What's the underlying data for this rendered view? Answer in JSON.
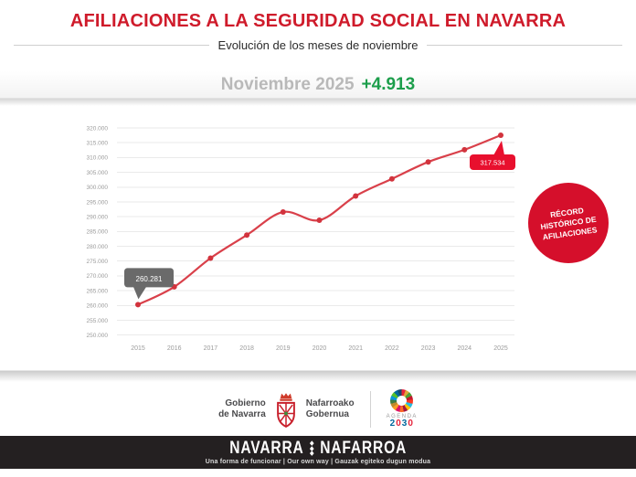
{
  "page": {
    "title": "AFILIACIONES A LA SEGURIDAD SOCIAL EN NAVARRA",
    "subtitle": "Evolución de los meses de noviembre"
  },
  "highlight": {
    "label": "Noviembre 2025",
    "delta": "+4.913"
  },
  "colors": {
    "title_red": "#cf1b2b",
    "line_red": "#d9404a",
    "marker_red": "#d2333d",
    "callout_red": "#e8102e",
    "badge_red": "#d50f2b",
    "callout_gray": "#6a6a6a",
    "positive_green": "#1c9e4b",
    "muted_gray": "#b9b9b9",
    "axis_gray": "#9b9b9b",
    "bar_black": "#242021"
  },
  "chart_data": {
    "type": "line",
    "title": "",
    "xlabel": "",
    "ylabel": "",
    "categories": [
      "2015",
      "2016",
      "2017",
      "2018",
      "2019",
      "2020",
      "2021",
      "2022",
      "2023",
      "2024",
      "2025"
    ],
    "values": [
      260281,
      266300,
      276000,
      283800,
      291600,
      288800,
      297000,
      302800,
      308500,
      312621,
      317534
    ],
    "ylim": [
      250000,
      320000
    ],
    "ytick_step": 5000,
    "ytick_labels": [
      "250.000",
      "255.000",
      "260.000",
      "265.000",
      "270.000",
      "275.000",
      "280.000",
      "285.000",
      "290.000",
      "295.000",
      "300.000",
      "305.000",
      "310.000",
      "315.000",
      "320.000"
    ],
    "grid": true,
    "legend": "none",
    "line_color": "#d9404a",
    "marker_color": "#d2333d",
    "callouts": [
      {
        "index": 0,
        "label": "260.281",
        "style": "gray"
      },
      {
        "index": 10,
        "label": "317.534",
        "style": "red"
      }
    ],
    "badge": {
      "lines": [
        "RÉCORD",
        "HISTÓRICO DE",
        "AFILIACIONES"
      ],
      "color": "#d50f2b"
    }
  },
  "footer": {
    "gov": {
      "es_line1": "Gobierno",
      "es_line2": "de Navarra",
      "eu_line1": "Nafarroako",
      "eu_line2": "Gobernua"
    },
    "agenda": {
      "label": "AGENDA",
      "year_digits": [
        {
          "char": "2",
          "color": "#00689d"
        },
        {
          "char": "0",
          "color": "#e5243b"
        },
        {
          "char": "3",
          "color": "#00689d"
        },
        {
          "char": "0",
          "color": "#e5243b"
        }
      ]
    }
  },
  "brandbar": {
    "left": "NAVARRA",
    "right": "NAFARROA",
    "tagline": "Una forma de funcionar | Our own way | Gauzak egiteko dugun modua"
  }
}
